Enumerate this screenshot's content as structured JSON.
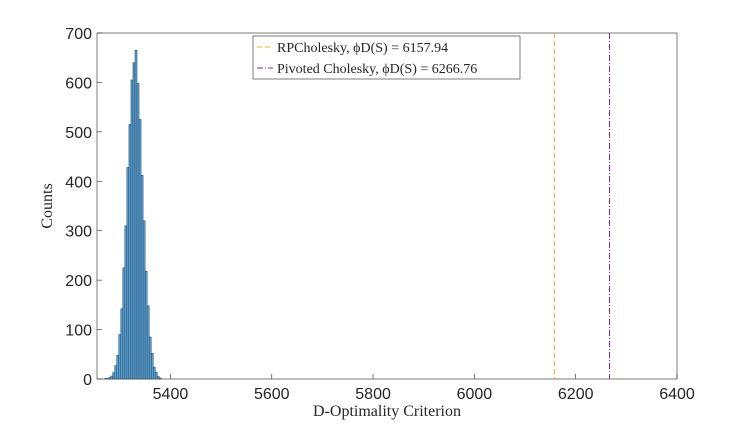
{
  "chart_data": {
    "type": "histogram",
    "xlabel": "D-Optimality Criterion",
    "ylabel": "Counts",
    "bins": [
      5262,
      5266,
      5270,
      5274,
      5278,
      5282,
      5286,
      5290,
      5294,
      5298,
      5302,
      5306,
      5310,
      5314,
      5318,
      5322,
      5326,
      5330,
      5334,
      5338,
      5342,
      5346,
      5350,
      5354,
      5358,
      5362,
      5366,
      5370,
      5374,
      5378,
      5382
    ],
    "counts": [
      0,
      0,
      1,
      1,
      3,
      6,
      13,
      27,
      48,
      90,
      142,
      225,
      310,
      428,
      515,
      605,
      640,
      665,
      598,
      525,
      412,
      320,
      218,
      148,
      85,
      52,
      24,
      14,
      5,
      2
    ],
    "color": "#5ba3d6",
    "edge_color": "#1d3b55",
    "xlim": [
      5255,
      6400
    ],
    "ylim": [
      0,
      700
    ],
    "xticks": [
      5400,
      5600,
      5800,
      6000,
      6200,
      6400
    ],
    "yticks": [
      0,
      100,
      200,
      300,
      400,
      500,
      600,
      700
    ],
    "vlines": [
      {
        "name": "RPCholesky, ϕD(S) = 6157.94",
        "x": 6157.94,
        "color": "#edb120",
        "dash": "5,3"
      },
      {
        "name": "Pivoted Cholesky, ϕD(S) = 6266.76",
        "x": 6266.76,
        "color": "#7e2f8e",
        "dash": "6,2,1,2"
      }
    ]
  }
}
